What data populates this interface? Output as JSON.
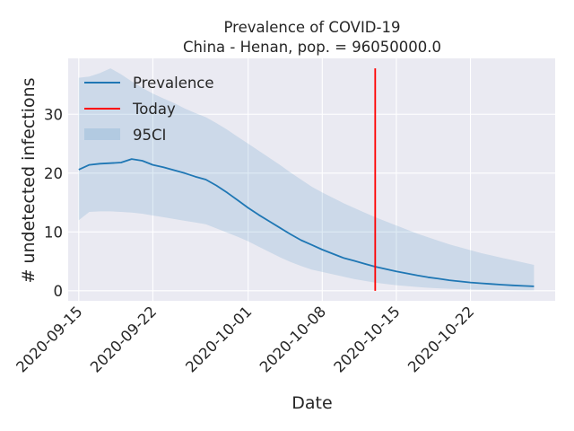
{
  "chart_data": {
    "type": "line",
    "title": "Prevalence of COVID-19",
    "subtitle": "China - Henan, pop. = 96050000.0",
    "xlabel": "Date",
    "ylabel": "# undetected infections",
    "x_axis_type": "date",
    "xlim": [
      "2020-09-14",
      "2020-10-30"
    ],
    "ylim": [
      -1.7,
      39.5
    ],
    "x_ticks": [
      "2020-09-15",
      "2020-09-22",
      "2020-10-01",
      "2020-10-08",
      "2020-10-15",
      "2020-10-22"
    ],
    "y_ticks": [
      0,
      10,
      20,
      30
    ],
    "grid": true,
    "legend_position": "top-left",
    "legend": [
      "Prevalence",
      "Today",
      "95CI"
    ],
    "colors": {
      "line": "#1f77b4",
      "today": "#ff0000",
      "band": "#1f77b4",
      "background": "#eaeaf2",
      "grid": "#ffffff",
      "text": "#262626"
    },
    "series": [
      {
        "name": "Prevalence",
        "x": [
          "2020-09-15",
          "2020-09-16",
          "2020-09-17",
          "2020-09-18",
          "2020-09-19",
          "2020-09-20",
          "2020-09-21",
          "2020-09-22",
          "2020-09-23",
          "2020-09-24",
          "2020-09-25",
          "2020-09-26",
          "2020-09-27",
          "2020-09-28",
          "2020-09-29",
          "2020-09-30",
          "2020-10-01",
          "2020-10-02",
          "2020-10-03",
          "2020-10-04",
          "2020-10-05",
          "2020-10-06",
          "2020-10-07",
          "2020-10-08",
          "2020-10-09",
          "2020-10-10",
          "2020-10-11",
          "2020-10-12",
          "2020-10-13",
          "2020-10-14",
          "2020-10-15",
          "2020-10-16",
          "2020-10-17",
          "2020-10-18",
          "2020-10-19",
          "2020-10-20",
          "2020-10-21",
          "2020-10-22",
          "2020-10-23",
          "2020-10-24",
          "2020-10-25",
          "2020-10-26",
          "2020-10-27",
          "2020-10-28"
        ],
        "values": [
          20.6,
          21.4,
          21.6,
          21.7,
          21.8,
          22.4,
          22.1,
          21.4,
          21.0,
          20.5,
          20.0,
          19.4,
          18.9,
          17.9,
          16.7,
          15.4,
          14.1,
          12.9,
          11.8,
          10.7,
          9.6,
          8.6,
          7.8,
          7.0,
          6.3,
          5.6,
          5.1,
          4.6,
          4.1,
          3.7,
          3.3,
          2.95,
          2.6,
          2.3,
          2.05,
          1.8,
          1.6,
          1.42,
          1.28,
          1.15,
          1.03,
          0.93,
          0.83,
          0.75
        ]
      },
      {
        "name": "95CI",
        "x": [
          "2020-09-15",
          "2020-09-16",
          "2020-09-17",
          "2020-09-18",
          "2020-09-19",
          "2020-09-20",
          "2020-09-21",
          "2020-09-22",
          "2020-09-23",
          "2020-09-24",
          "2020-09-25",
          "2020-09-26",
          "2020-09-27",
          "2020-09-28",
          "2020-09-29",
          "2020-09-30",
          "2020-10-01",
          "2020-10-02",
          "2020-10-03",
          "2020-10-04",
          "2020-10-05",
          "2020-10-06",
          "2020-10-07",
          "2020-10-08",
          "2020-10-09",
          "2020-10-10",
          "2020-10-11",
          "2020-10-12",
          "2020-10-13",
          "2020-10-14",
          "2020-10-15",
          "2020-10-16",
          "2020-10-17",
          "2020-10-18",
          "2020-10-19",
          "2020-10-20",
          "2020-10-21",
          "2020-10-22",
          "2020-10-23",
          "2020-10-24",
          "2020-10-25",
          "2020-10-26",
          "2020-10-27",
          "2020-10-28"
        ],
        "lower": [
          12.0,
          13.4,
          13.5,
          13.5,
          13.4,
          13.3,
          13.1,
          12.8,
          12.5,
          12.2,
          11.9,
          11.6,
          11.3,
          10.6,
          9.9,
          9.2,
          8.4,
          7.5,
          6.6,
          5.7,
          4.9,
          4.2,
          3.6,
          3.2,
          2.8,
          2.4,
          2.0,
          1.7,
          1.4,
          1.15,
          0.95,
          0.8,
          0.65,
          0.52,
          0.42,
          0.34,
          0.28,
          0.23,
          0.19,
          0.16,
          0.14,
          0.12,
          0.1,
          0.08
        ],
        "upper": [
          36.2,
          36.4,
          37.0,
          37.8,
          36.8,
          35.6,
          34.5,
          33.5,
          32.7,
          31.9,
          31.0,
          30.2,
          29.5,
          28.5,
          27.4,
          26.2,
          25.0,
          23.8,
          22.6,
          21.4,
          20.1,
          18.9,
          17.7,
          16.7,
          15.8,
          14.9,
          14.1,
          13.3,
          12.5,
          11.8,
          11.1,
          10.4,
          9.7,
          9.1,
          8.5,
          7.9,
          7.4,
          6.9,
          6.4,
          6.0,
          5.6,
          5.2,
          4.8,
          4.4
        ]
      }
    ],
    "today": "2020-10-13"
  }
}
